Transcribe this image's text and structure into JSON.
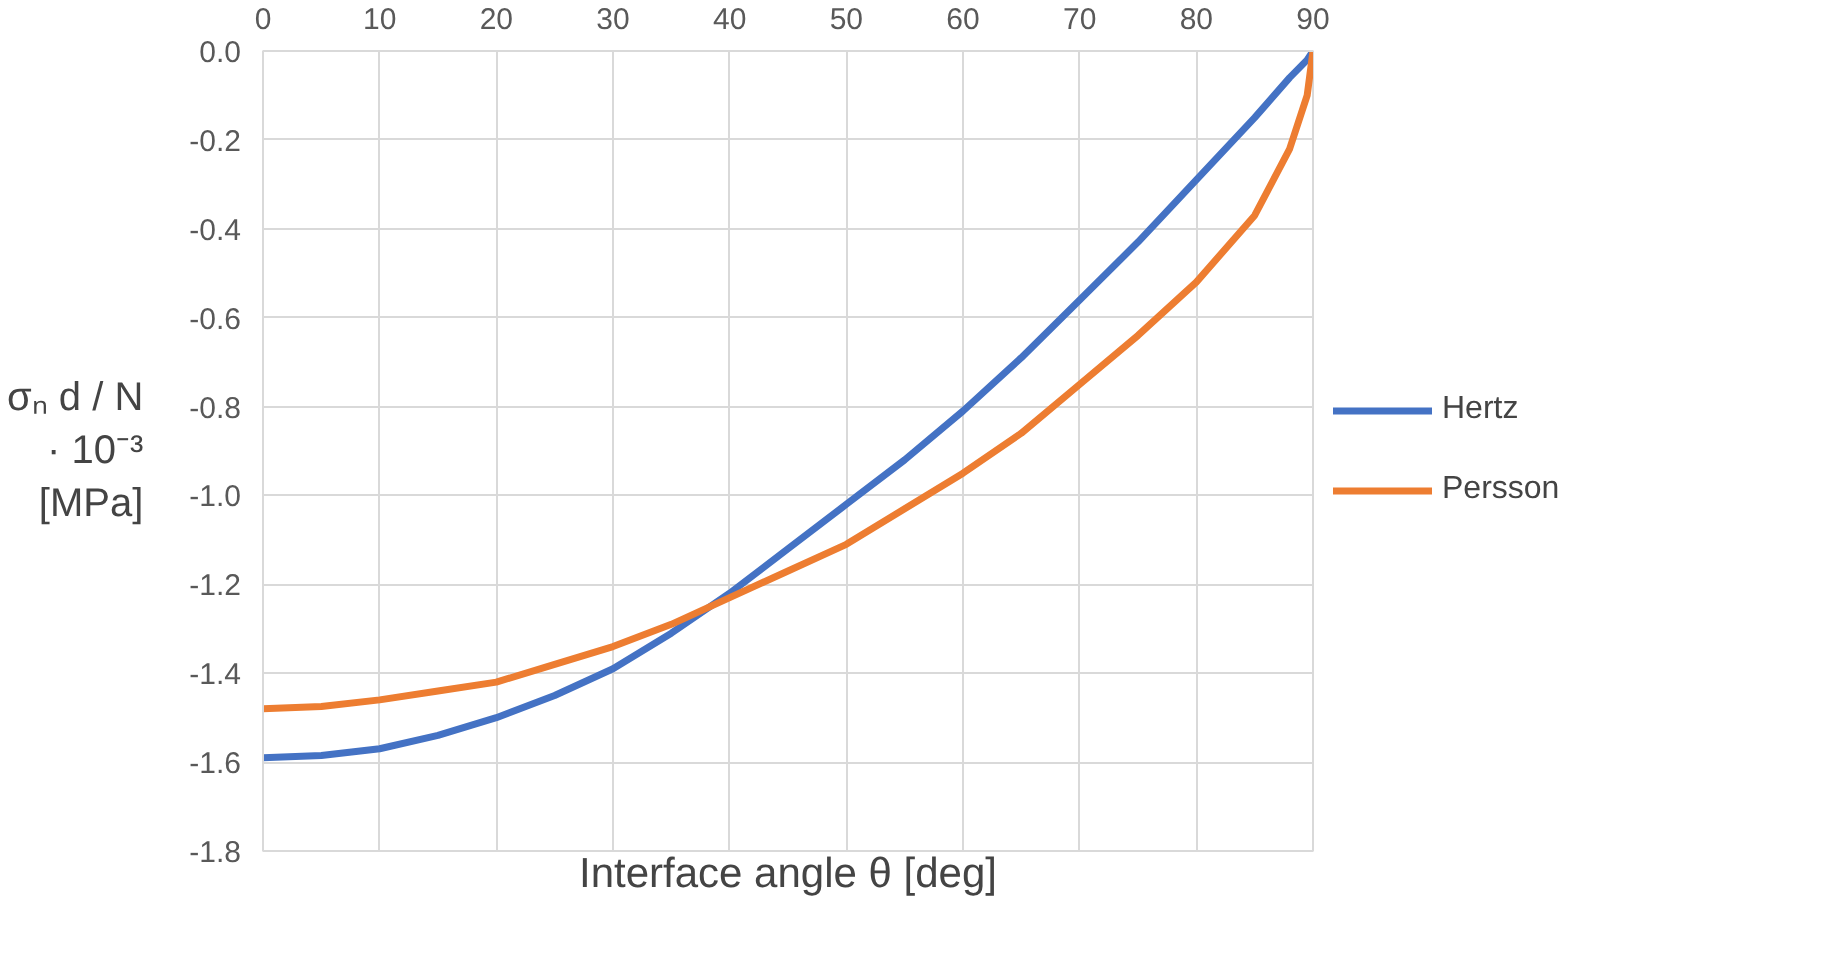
{
  "chart_data": {
    "type": "line",
    "xlabel": "Interface angle θ [deg]",
    "ylabel": "σₙ d / N\n· 10⁻³\n[MPa]",
    "x": [
      0,
      5,
      10,
      15,
      20,
      25,
      30,
      35,
      40,
      45,
      50,
      55,
      60,
      65,
      70,
      75,
      80,
      85,
      88,
      89.5,
      90
    ],
    "series": [
      {
        "name": "Hertz",
        "color": "#4472c4",
        "values": [
          -1.59,
          -1.585,
          -1.57,
          -1.54,
          -1.5,
          -1.45,
          -1.39,
          -1.31,
          -1.22,
          -1.12,
          -1.02,
          -0.92,
          -0.81,
          -0.69,
          -0.56,
          -0.43,
          -0.29,
          -0.15,
          -0.06,
          -0.02,
          0
        ]
      },
      {
        "name": "Persson",
        "color": "#ed7d31",
        "values": [
          -1.48,
          -1.475,
          -1.46,
          -1.44,
          -1.42,
          -1.38,
          -1.34,
          -1.29,
          -1.23,
          -1.17,
          -1.11,
          -1.03,
          -0.95,
          -0.86,
          -0.75,
          -0.64,
          -0.52,
          -0.37,
          -0.22,
          -0.1,
          0
        ]
      }
    ],
    "xlim": [
      0,
      90
    ],
    "ylim": [
      -1.8,
      0
    ],
    "xticks": [
      0,
      10,
      20,
      30,
      40,
      50,
      60,
      70,
      80,
      90
    ],
    "yticks": [
      {
        "value": -1.8,
        "label": "-1.8"
      },
      {
        "value": -1.6,
        "label": "-1.6"
      },
      {
        "value": -1.4,
        "label": "-1.4"
      },
      {
        "value": -1.2,
        "label": "-1.2"
      },
      {
        "value": -1.0,
        "label": "-1.0"
      },
      {
        "value": -0.8,
        "label": "-0.8"
      },
      {
        "value": -0.6,
        "label": "-0.6"
      },
      {
        "value": -0.4,
        "label": "-0.4"
      },
      {
        "value": -0.2,
        "label": "-0.2"
      },
      {
        "value": 0,
        "label": "0.0"
      }
    ],
    "grid": true,
    "legend": "right",
    "marker": "none",
    "line_style": "solid"
  }
}
